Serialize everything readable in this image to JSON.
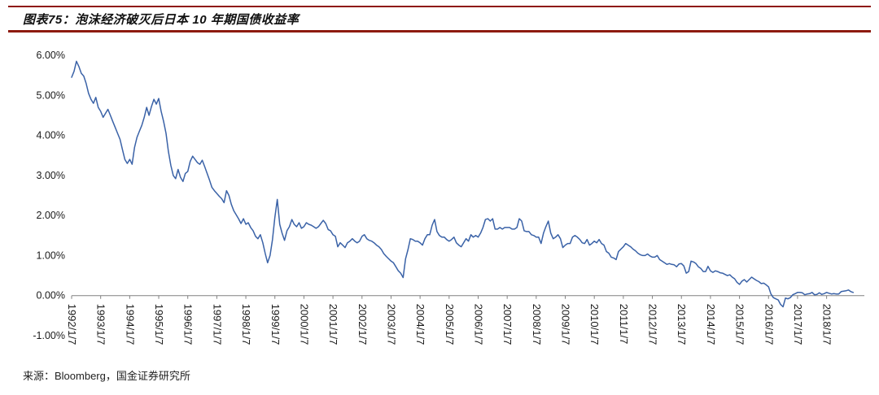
{
  "header": {
    "title": "图表75：泡沫经济破灭后日本 10 年期国债收益率"
  },
  "footer": {
    "source": "来源：Bloomberg，国金证券研究所"
  },
  "colors": {
    "rule_red": "#8E1A0F",
    "line_blue": "#3A62A7",
    "axis_gray": "#808080",
    "text_black": "#1A1A1A"
  },
  "chart_data": {
    "type": "line",
    "title": "泡沫经济破灭后日本 10 年期国债收益率",
    "xlabel": "",
    "ylabel": "",
    "ylim": [
      -1,
      6
    ],
    "x_range": [
      1992,
      2019.3
    ],
    "grid": false,
    "legend": "none",
    "y_ticks": [
      "6.00%",
      "5.00%",
      "4.00%",
      "3.00%",
      "2.00%",
      "1.00%",
      "0.00%",
      "-1.00%"
    ],
    "x_tick_labels": [
      "1992/1/7",
      "1993/1/7",
      "1994/1/7",
      "1995/1/7",
      "1996/1/7",
      "1997/1/7",
      "1998/1/7",
      "1999/1/7",
      "2000/1/7",
      "2001/1/7",
      "2002/1/7",
      "2003/1/7",
      "2004/1/7",
      "2005/1/7",
      "2006/1/7",
      "2007/1/7",
      "2008/1/7",
      "2009/1/7",
      "2010/1/7",
      "2011/1/7",
      "2012/1/7",
      "2013/1/7",
      "2014/1/7",
      "2015/1/7",
      "2016/1/7",
      "2017/1/7",
      "2018/1/7"
    ],
    "start_year": 1992,
    "points_per_year": 12,
    "unit": "percent",
    "values": [
      5.45,
      5.6,
      5.85,
      5.72,
      5.55,
      5.48,
      5.3,
      5.05,
      4.9,
      4.8,
      4.95,
      4.7,
      4.6,
      4.45,
      4.55,
      4.65,
      4.5,
      4.35,
      4.2,
      4.05,
      3.9,
      3.65,
      3.4,
      3.3,
      3.4,
      3.28,
      3.7,
      3.95,
      4.1,
      4.25,
      4.45,
      4.7,
      4.5,
      4.72,
      4.9,
      4.78,
      4.92,
      4.6,
      4.35,
      4.05,
      3.6,
      3.25,
      3.0,
      2.92,
      3.15,
      2.95,
      2.85,
      3.05,
      3.1,
      3.35,
      3.48,
      3.4,
      3.32,
      3.28,
      3.38,
      3.22,
      3.05,
      2.88,
      2.7,
      2.62,
      2.55,
      2.48,
      2.42,
      2.32,
      2.62,
      2.5,
      2.28,
      2.12,
      2.02,
      1.92,
      1.8,
      1.92,
      1.78,
      1.82,
      1.7,
      1.62,
      1.48,
      1.42,
      1.52,
      1.32,
      1.05,
      0.82,
      1.0,
      1.4,
      1.95,
      2.4,
      1.78,
      1.55,
      1.38,
      1.62,
      1.72,
      1.9,
      1.78,
      1.72,
      1.82,
      1.68,
      1.72,
      1.82,
      1.78,
      1.76,
      1.72,
      1.68,
      1.72,
      1.8,
      1.88,
      1.8,
      1.65,
      1.62,
      1.52,
      1.48,
      1.22,
      1.32,
      1.26,
      1.2,
      1.32,
      1.36,
      1.42,
      1.36,
      1.32,
      1.36,
      1.48,
      1.52,
      1.42,
      1.38,
      1.36,
      1.32,
      1.26,
      1.22,
      1.15,
      1.05,
      0.98,
      0.92,
      0.86,
      0.82,
      0.72,
      0.62,
      0.56,
      0.45,
      0.92,
      1.15,
      1.42,
      1.4,
      1.36,
      1.36,
      1.32,
      1.26,
      1.42,
      1.52,
      1.52,
      1.76,
      1.9,
      1.6,
      1.5,
      1.46,
      1.46,
      1.4,
      1.36,
      1.4,
      1.46,
      1.32,
      1.26,
      1.22,
      1.32,
      1.42,
      1.36,
      1.52,
      1.46,
      1.5,
      1.46,
      1.56,
      1.7,
      1.9,
      1.92,
      1.86,
      1.92,
      1.66,
      1.66,
      1.7,
      1.66,
      1.7,
      1.7,
      1.7,
      1.66,
      1.66,
      1.7,
      1.92,
      1.86,
      1.62,
      1.6,
      1.6,
      1.52,
      1.5,
      1.46,
      1.46,
      1.3,
      1.56,
      1.72,
      1.86,
      1.56,
      1.42,
      1.46,
      1.52,
      1.42,
      1.2,
      1.26,
      1.3,
      1.3,
      1.46,
      1.5,
      1.46,
      1.4,
      1.32,
      1.3,
      1.4,
      1.26,
      1.3,
      1.36,
      1.32,
      1.4,
      1.3,
      1.26,
      1.1,
      1.06,
      0.96,
      0.94,
      0.9,
      1.1,
      1.16,
      1.22,
      1.3,
      1.26,
      1.22,
      1.16,
      1.12,
      1.06,
      1.02,
      1.0,
      1.0,
      1.04,
      0.99,
      0.96,
      0.96,
      1.0,
      0.9,
      0.86,
      0.82,
      0.78,
      0.8,
      0.78,
      0.77,
      0.72,
      0.79,
      0.8,
      0.74,
      0.56,
      0.6,
      0.86,
      0.84,
      0.8,
      0.72,
      0.68,
      0.6,
      0.6,
      0.73,
      0.62,
      0.58,
      0.62,
      0.6,
      0.57,
      0.56,
      0.53,
      0.5,
      0.52,
      0.46,
      0.42,
      0.33,
      0.28,
      0.36,
      0.4,
      0.34,
      0.4,
      0.46,
      0.42,
      0.38,
      0.35,
      0.3,
      0.31,
      0.27,
      0.22,
      0.04,
      -0.05,
      -0.08,
      -0.11,
      -0.22,
      -0.28,
      -0.06,
      -0.08,
      -0.05,
      0.02,
      0.05,
      0.08,
      0.08,
      0.07,
      0.02,
      0.04,
      0.05,
      0.08,
      0.02,
      0.03,
      0.07,
      0.03,
      0.05,
      0.08,
      0.06,
      0.04,
      0.05,
      0.04,
      0.04,
      0.1,
      0.11,
      0.12,
      0.14,
      0.1,
      0.08
    ]
  }
}
